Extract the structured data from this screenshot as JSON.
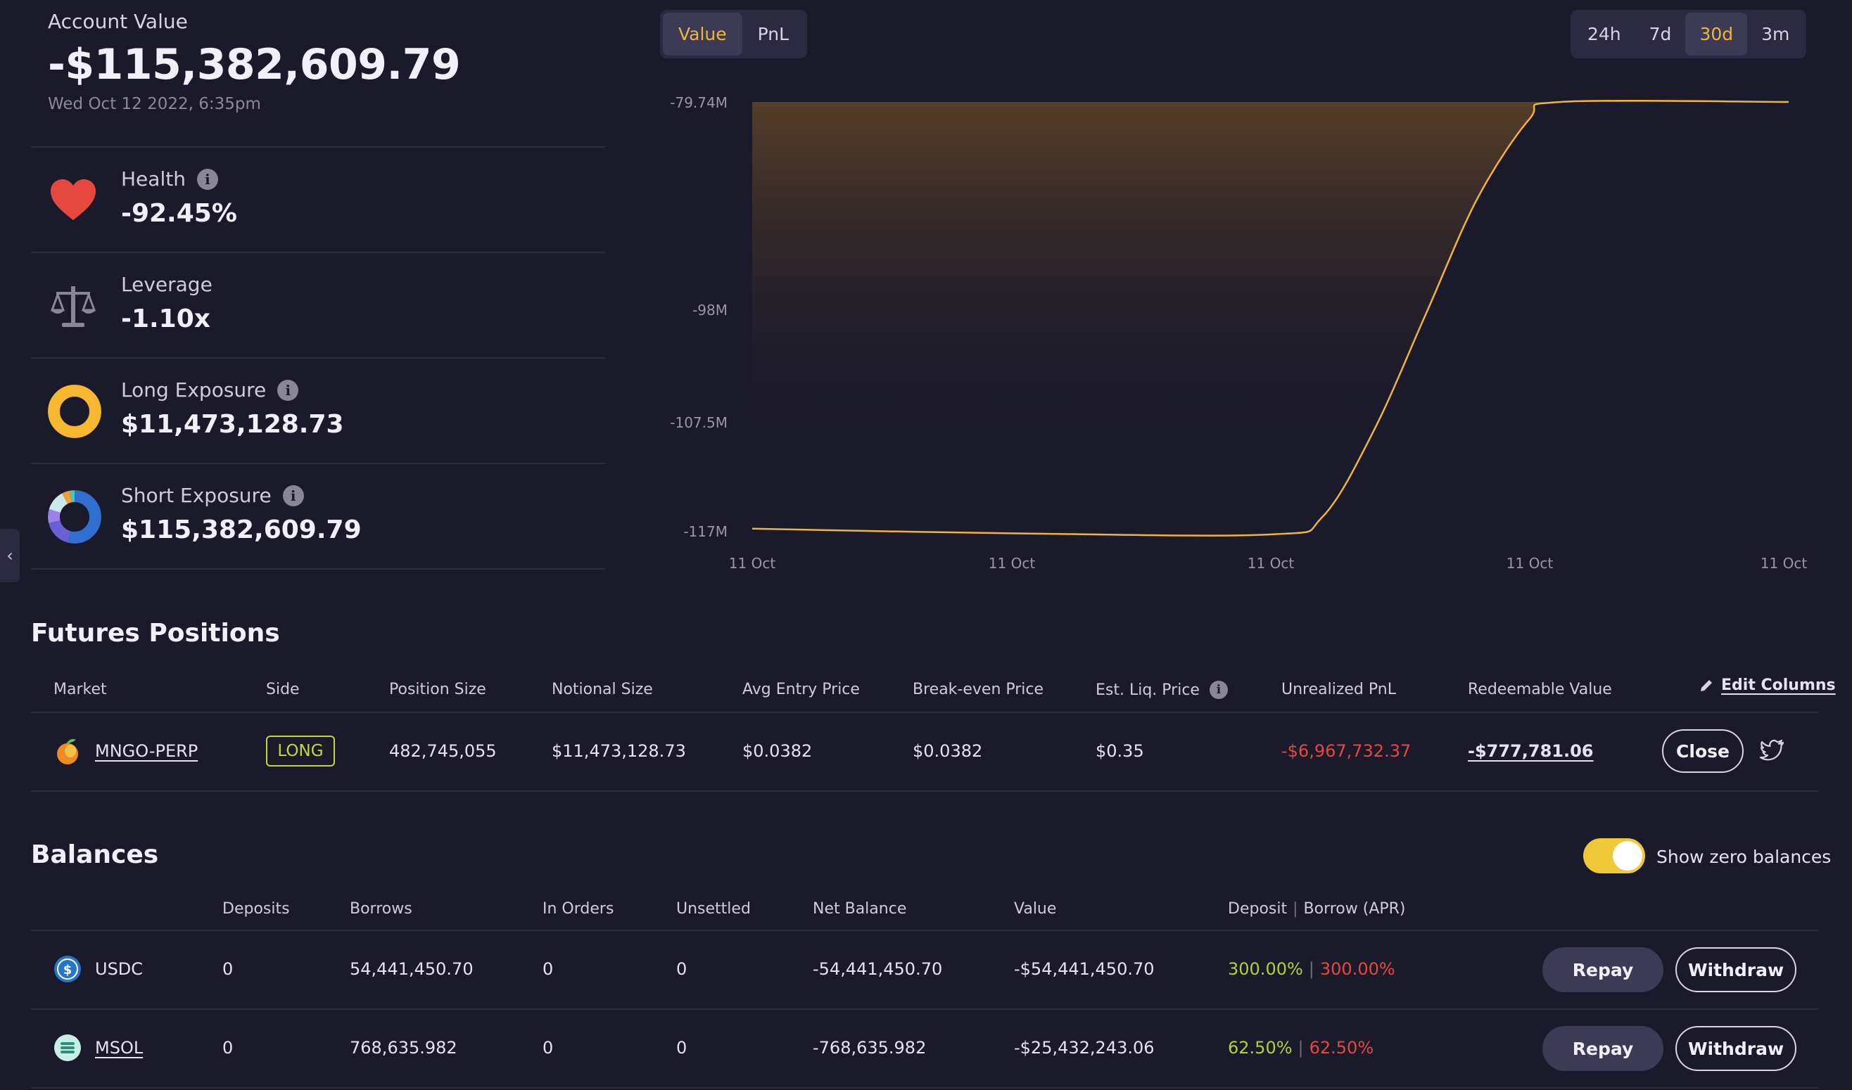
{
  "summary": {
    "account_label": "Account Value",
    "account_value": "-$115,382,609.79",
    "account_date": "Wed Oct 12 2022, 6:35pm",
    "health": {
      "label": "Health",
      "value": "-92.45%"
    },
    "leverage": {
      "label": "Leverage",
      "value": "-1.10x"
    },
    "long_exposure": {
      "label": "Long Exposure",
      "value": "$11,473,128.73"
    },
    "short_exposure": {
      "label": "Short Exposure",
      "value": "$115,382,609.79"
    }
  },
  "chart_controls": {
    "type_options": [
      "Value",
      "PnL"
    ],
    "type_selected": "Value",
    "range_options": [
      "24h",
      "7d",
      "30d",
      "3m"
    ],
    "range_selected": "30d"
  },
  "chart_data": {
    "type": "area",
    "y_ticks": [
      "-79.74M",
      "-98M",
      "-107.5M",
      "-117M"
    ],
    "x_ticks": [
      "11 Oct",
      "11 Oct",
      "11 Oct",
      "11 Oct",
      "11 Oct"
    ],
    "ylim": [
      -117,
      -79.74
    ],
    "x": [
      0,
      0.25,
      0.5,
      0.55,
      0.6,
      0.65,
      0.7,
      0.75,
      0.78,
      1.0
    ],
    "values": [
      -116.5,
      -116.9,
      -117,
      -115.5,
      -108,
      -98,
      -88,
      -81.2,
      -79.74,
      -79.74
    ],
    "line_color": "#f0b43a"
  },
  "futures": {
    "title": "Futures Positions",
    "headers": [
      "Market",
      "Side",
      "Position Size",
      "Notional Size",
      "Avg Entry Price",
      "Break-even Price",
      "Est. Liq. Price",
      "Unrealized PnL",
      "Redeemable Value"
    ],
    "edit_columns": "Edit Columns",
    "row": {
      "market": "MNGO-PERP",
      "side": "LONG",
      "position_size": "482,745,055",
      "notional_size": "$11,473,128.73",
      "avg_entry": "$0.0382",
      "break_even": "$0.0382",
      "liq_price": "$0.35",
      "unrealized_pnl": "-$6,967,732.37",
      "redeemable": "-$777,781.06",
      "close_label": "Close"
    }
  },
  "balances": {
    "title": "Balances",
    "toggle_label": "Show zero balances",
    "headers": [
      "Deposits",
      "Borrows",
      "In Orders",
      "Unsettled",
      "Net Balance",
      "Value"
    ],
    "rate_header_a": "Deposit",
    "rate_header_b": "Borrow (APR)",
    "repay_label": "Repay",
    "withdraw_label": "Withdraw",
    "rows": [
      {
        "token": "USDC",
        "deposits": "0",
        "borrows": "54,441,450.70",
        "in_orders": "0",
        "unsettled": "0",
        "net": "-54,441,450.70",
        "value": "-$54,441,450.70",
        "dep_rate": "300.00%",
        "borrow_rate": "300.00%"
      },
      {
        "token": "MSOL",
        "deposits": "0",
        "borrows": "768,635.982",
        "in_orders": "0",
        "unsettled": "0",
        "net": "-768,635.982",
        "value": "-$25,432,243.06",
        "dep_rate": "62.50%",
        "borrow_rate": "62.50%"
      }
    ]
  }
}
